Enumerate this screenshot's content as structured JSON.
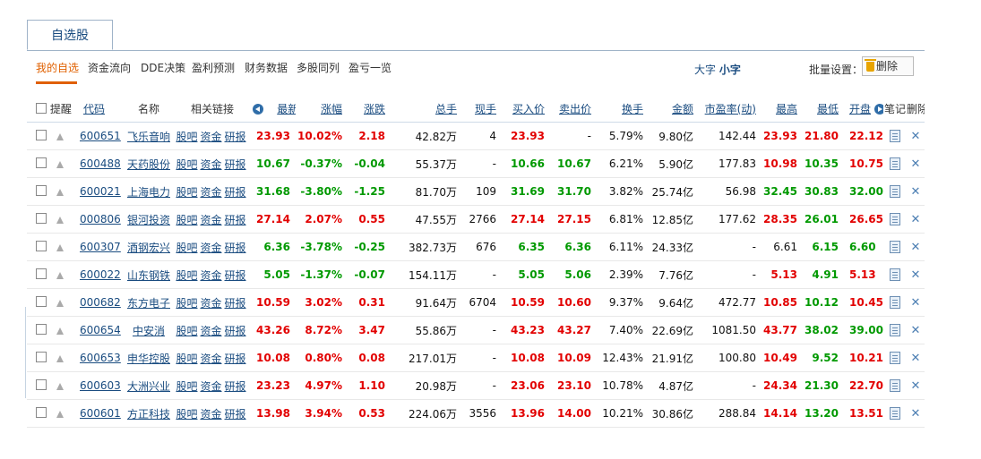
{
  "tab": {
    "label": "自选股"
  },
  "subnav": {
    "items": [
      "我的自选",
      "资金流向",
      "DDE决策",
      "盈利预测",
      "财务数据",
      "多股同列",
      "盈亏一览"
    ],
    "font_big": "大字",
    "font_small": "小字",
    "batch_label": "批量设置：",
    "delete_label": "删除"
  },
  "headers": {
    "remind": "提醒",
    "code": "代码",
    "name": "名称",
    "links": "相关链接",
    "latest": "最新",
    "change_pct": "涨幅",
    "change": "涨跌",
    "total_hands": "总手",
    "current_hands": "现手",
    "bid": "买入价",
    "ask": "卖出价",
    "turnover": "换手",
    "amount": "金额",
    "pe": "市盈率(动)",
    "high": "最高",
    "low": "最低",
    "open": "开盘",
    "note": "笔记",
    "delete": "删除"
  },
  "link_labels": {
    "guba": "股吧",
    "fund": "资金",
    "report": "研报"
  },
  "rows": [
    {
      "code": "600651",
      "name": "飞乐音响",
      "latest": "23.93",
      "pct": "10.02%",
      "chg": "2.18",
      "total": "42.82万",
      "cur": "4",
      "bid": "23.93",
      "ask": "-",
      "turn": "5.79%",
      "amt": "9.80亿",
      "pe": "142.44",
      "high": "23.93",
      "low": "21.80",
      "open": "22.12",
      "trend": "up",
      "hc": "red",
      "lc": "red",
      "oc": "red",
      "bc": "red",
      "ac": "black"
    },
    {
      "code": "600488",
      "name": "天药股份",
      "latest": "10.67",
      "pct": "-0.37%",
      "chg": "-0.04",
      "total": "55.37万",
      "cur": "-",
      "bid": "10.66",
      "ask": "10.67",
      "turn": "6.21%",
      "amt": "5.90亿",
      "pe": "177.83",
      "high": "10.98",
      "low": "10.35",
      "open": "10.75",
      "trend": "down",
      "hc": "red",
      "lc": "green",
      "oc": "red",
      "bc": "green",
      "ac": "green"
    },
    {
      "code": "600021",
      "name": "上海电力",
      "latest": "31.68",
      "pct": "-3.80%",
      "chg": "-1.25",
      "total": "81.70万",
      "cur": "109",
      "bid": "31.69",
      "ask": "31.70",
      "turn": "3.82%",
      "amt": "25.74亿",
      "pe": "56.98",
      "high": "32.45",
      "low": "30.83",
      "open": "32.00",
      "trend": "down",
      "hc": "green",
      "lc": "green",
      "oc": "green",
      "bc": "green",
      "ac": "green"
    },
    {
      "code": "000806",
      "name": "银河投资",
      "latest": "27.14",
      "pct": "2.07%",
      "chg": "0.55",
      "total": "47.55万",
      "cur": "2766",
      "bid": "27.14",
      "ask": "27.15",
      "turn": "6.81%",
      "amt": "12.85亿",
      "pe": "177.62",
      "high": "28.35",
      "low": "26.01",
      "open": "26.65",
      "trend": "up",
      "hc": "red",
      "lc": "green",
      "oc": "red",
      "bc": "red",
      "ac": "red"
    },
    {
      "code": "600307",
      "name": "酒钢宏兴",
      "latest": "6.36",
      "pct": "-3.78%",
      "chg": "-0.25",
      "total": "382.73万",
      "cur": "676",
      "bid": "6.35",
      "ask": "6.36",
      "turn": "6.11%",
      "amt": "24.33亿",
      "pe": "-",
      "high": "6.61",
      "low": "6.15",
      "open": "6.60",
      "trend": "down",
      "hc": "black",
      "lc": "green",
      "oc": "green",
      "bc": "green",
      "ac": "green"
    },
    {
      "code": "600022",
      "name": "山东钢铁",
      "latest": "5.05",
      "pct": "-1.37%",
      "chg": "-0.07",
      "total": "154.11万",
      "cur": "-",
      "bid": "5.05",
      "ask": "5.06",
      "turn": "2.39%",
      "amt": "7.76亿",
      "pe": "-",
      "high": "5.13",
      "low": "4.91",
      "open": "5.13",
      "trend": "down",
      "hc": "red",
      "lc": "green",
      "oc": "red",
      "bc": "green",
      "ac": "green"
    },
    {
      "code": "000682",
      "name": "东方电子",
      "latest": "10.59",
      "pct": "3.02%",
      "chg": "0.31",
      "total": "91.64万",
      "cur": "6704",
      "bid": "10.59",
      "ask": "10.60",
      "turn": "9.37%",
      "amt": "9.64亿",
      "pe": "472.77",
      "high": "10.85",
      "low": "10.12",
      "open": "10.45",
      "trend": "up",
      "hc": "red",
      "lc": "green",
      "oc": "red",
      "bc": "red",
      "ac": "red"
    },
    {
      "code": "600654",
      "name": "中安消",
      "latest": "43.26",
      "pct": "8.72%",
      "chg": "3.47",
      "total": "55.86万",
      "cur": "-",
      "bid": "43.23",
      "ask": "43.27",
      "turn": "7.40%",
      "amt": "22.69亿",
      "pe": "1081.50",
      "high": "43.77",
      "low": "38.02",
      "open": "39.00",
      "trend": "up",
      "hc": "red",
      "lc": "green",
      "oc": "green",
      "bc": "red",
      "ac": "red"
    },
    {
      "code": "600653",
      "name": "申华控股",
      "latest": "10.08",
      "pct": "0.80%",
      "chg": "0.08",
      "total": "217.01万",
      "cur": "-",
      "bid": "10.08",
      "ask": "10.09",
      "turn": "12.43%",
      "amt": "21.91亿",
      "pe": "100.80",
      "high": "10.49",
      "low": "9.52",
      "open": "10.21",
      "trend": "up",
      "hc": "red",
      "lc": "green",
      "oc": "red",
      "bc": "red",
      "ac": "red"
    },
    {
      "code": "600603",
      "name": "大洲兴业",
      "latest": "23.23",
      "pct": "4.97%",
      "chg": "1.10",
      "total": "20.98万",
      "cur": "-",
      "bid": "23.06",
      "ask": "23.10",
      "turn": "10.78%",
      "amt": "4.87亿",
      "pe": "-",
      "high": "24.34",
      "low": "21.30",
      "open": "22.70",
      "trend": "up",
      "hc": "red",
      "lc": "green",
      "oc": "red",
      "bc": "red",
      "ac": "red"
    },
    {
      "code": "600601",
      "name": "方正科技",
      "latest": "13.98",
      "pct": "3.94%",
      "chg": "0.53",
      "total": "224.06万",
      "cur": "3556",
      "bid": "13.96",
      "ask": "14.00",
      "turn": "10.21%",
      "amt": "30.86亿",
      "pe": "288.84",
      "high": "14.14",
      "low": "13.20",
      "open": "13.51",
      "trend": "up",
      "hc": "red",
      "lc": "green",
      "oc": "red",
      "bc": "red",
      "ac": "red"
    }
  ],
  "colors": {
    "up": "#e20000",
    "down": "#009900",
    "link": "#1a4c80",
    "active": "#e06000"
  }
}
